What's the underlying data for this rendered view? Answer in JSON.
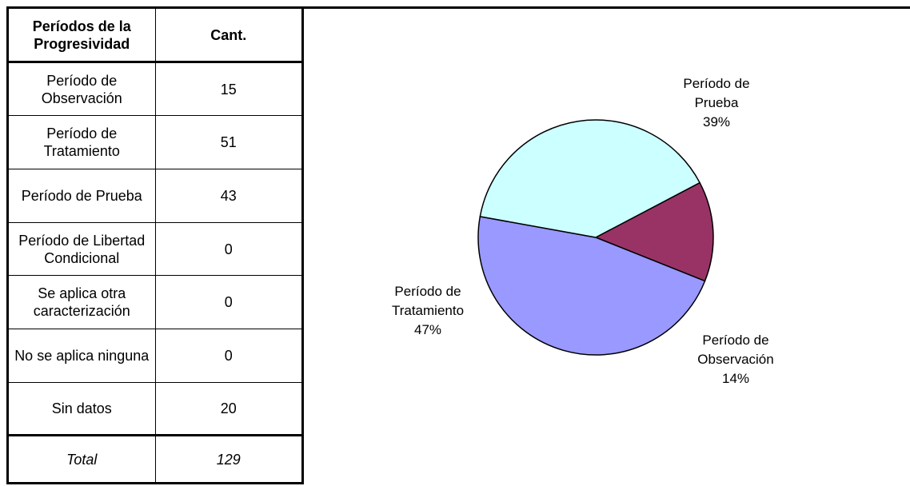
{
  "table": {
    "headers": [
      "Períodos de la Progresividad",
      "Cant."
    ],
    "rows": [
      {
        "period": "Período de Observación",
        "cant": "15"
      },
      {
        "period": "Período de Tratamiento",
        "cant": "51"
      },
      {
        "period": "Período de Prueba",
        "cant": "43"
      },
      {
        "period": "Período de Libertad Condicional",
        "cant": "0"
      },
      {
        "period": "Se aplica otra caracterización",
        "cant": "0"
      },
      {
        "period": "No se aplica ninguna",
        "cant": "0"
      },
      {
        "period": "Sin datos",
        "cant": "20"
      }
    ],
    "total": {
      "period": "Total",
      "cant": "129"
    }
  },
  "chart_data": {
    "type": "pie",
    "slices": [
      {
        "label": "Período de Observación",
        "value": 15,
        "percent_label": "14%",
        "color": "#993366"
      },
      {
        "label": "Período de Tratamiento",
        "value": 51,
        "percent_label": "47%",
        "color": "#9999ff"
      },
      {
        "label": "Período de Prueba",
        "value": 43,
        "percent_label": "39%",
        "color": "#ccffff"
      }
    ]
  }
}
